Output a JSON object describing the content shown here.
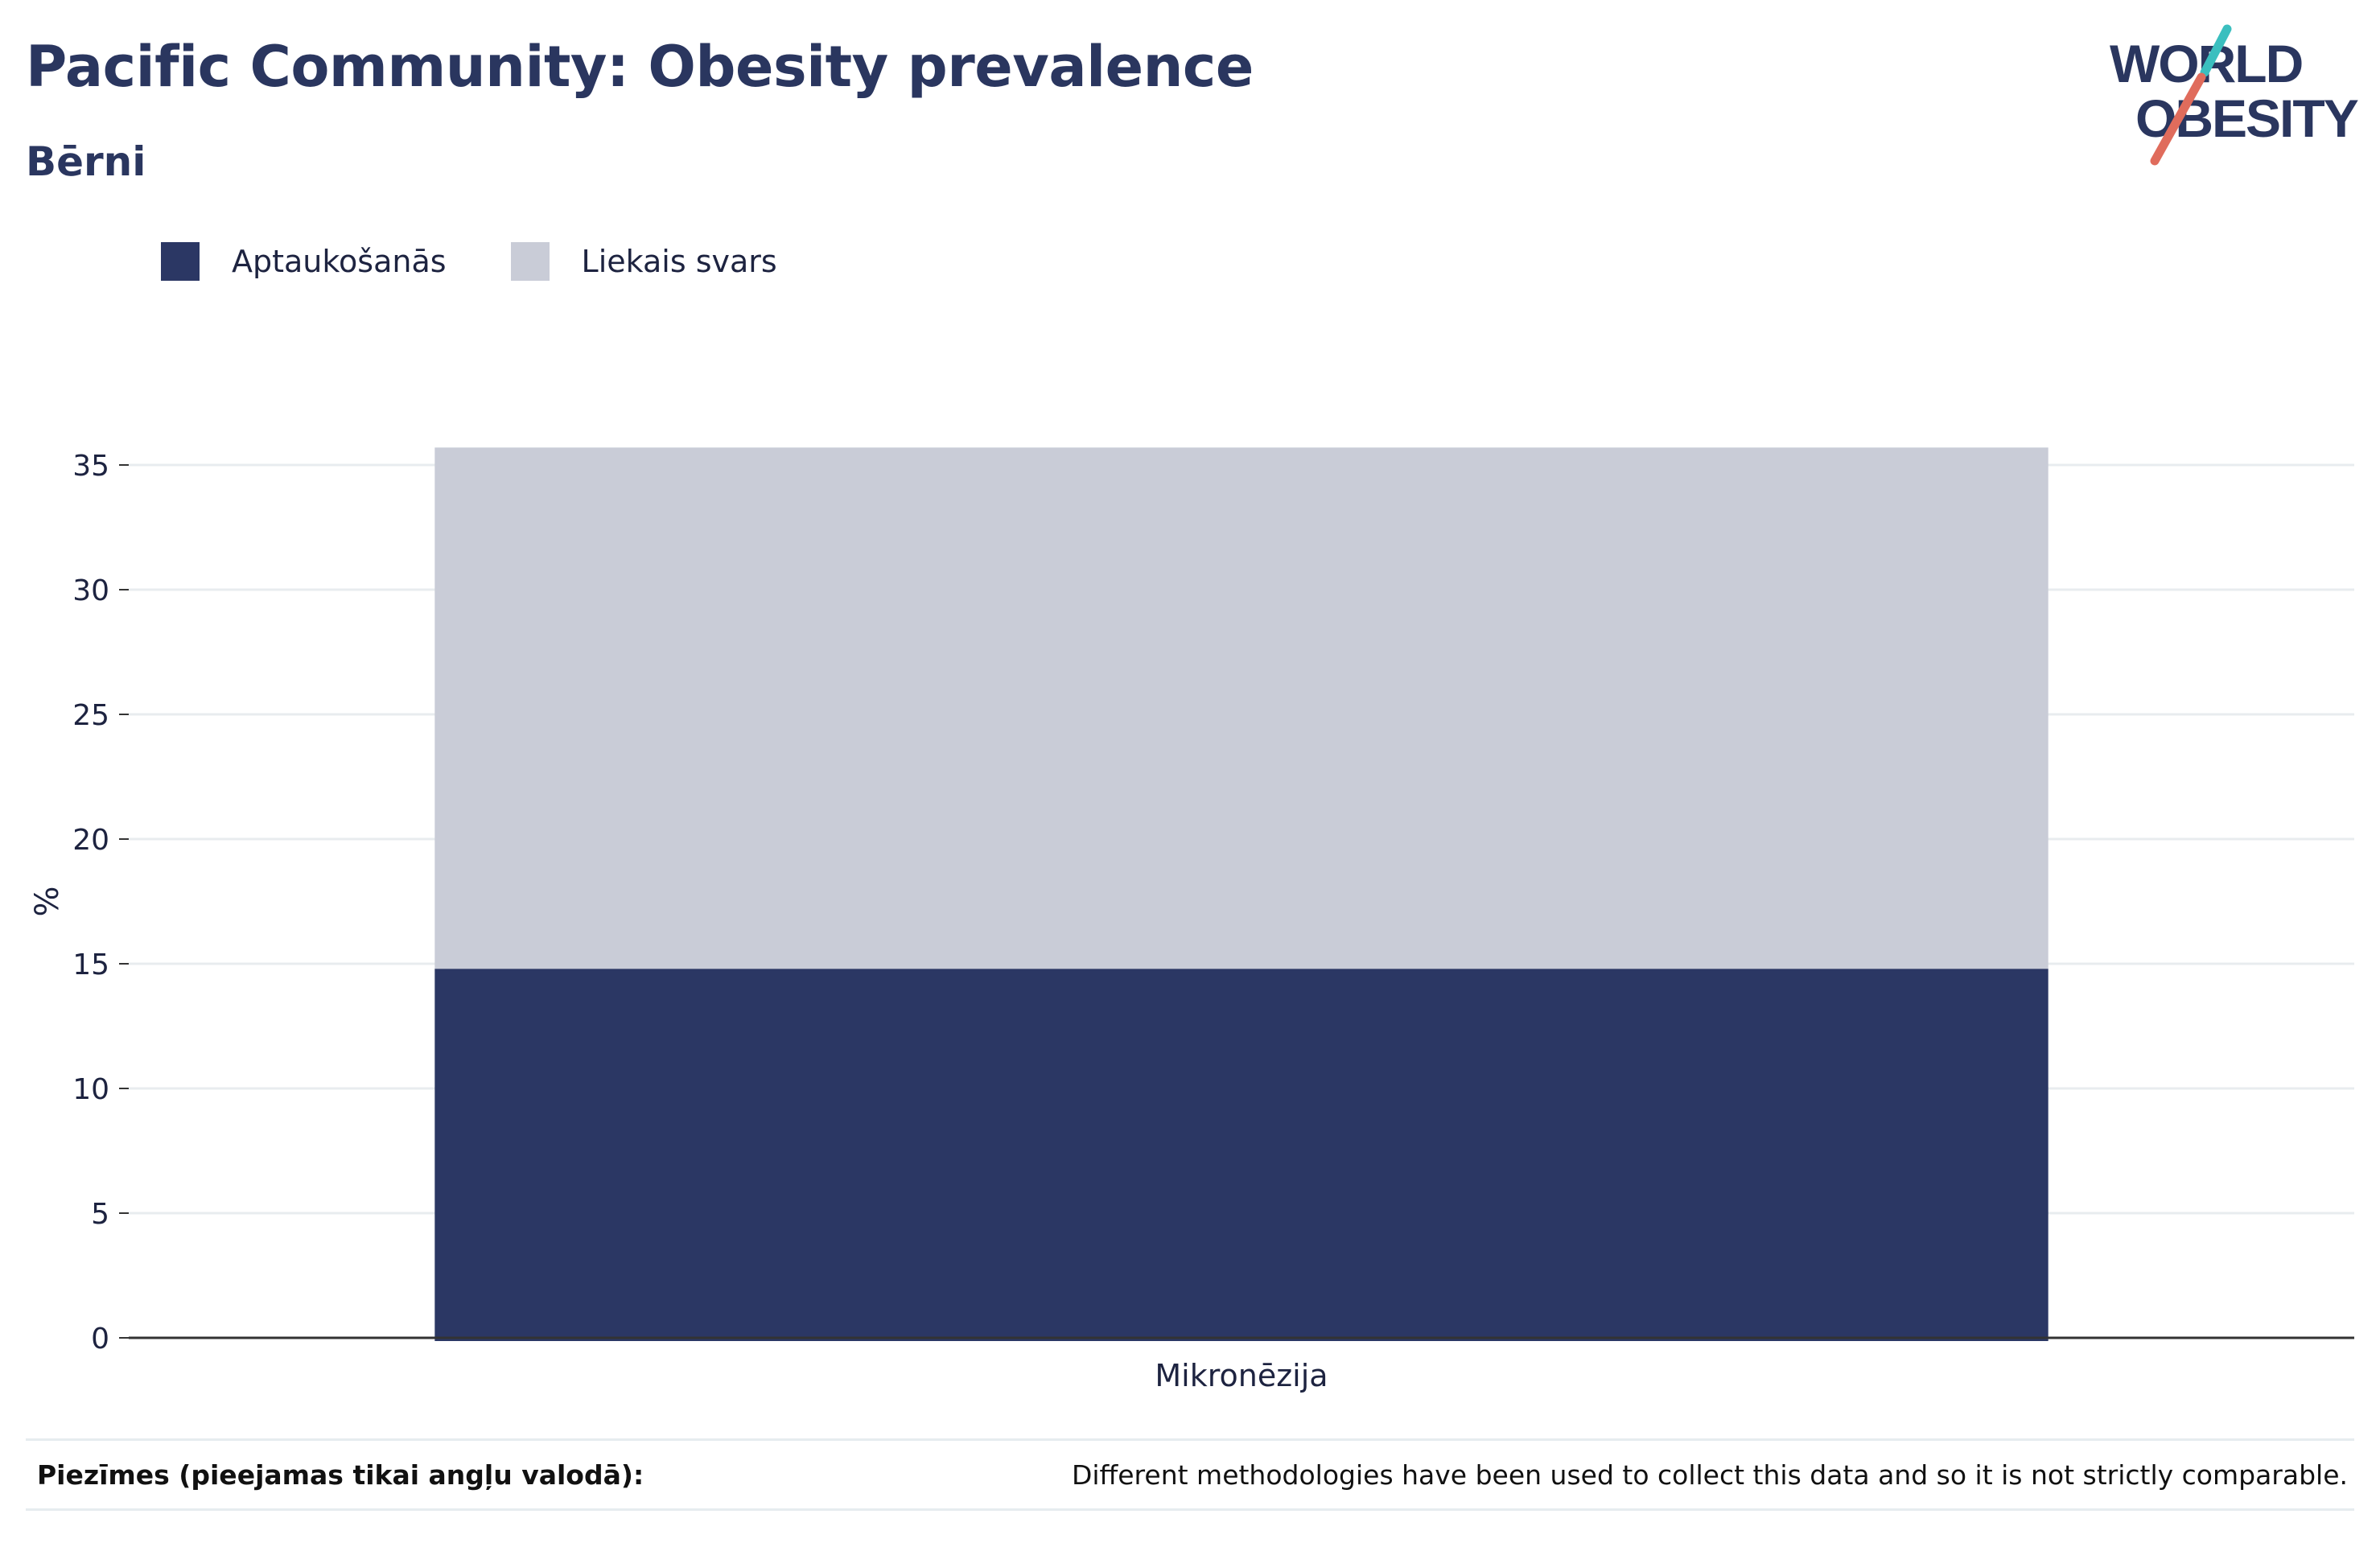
{
  "header": {
    "title": "Pacific Community: Obesity prevalence",
    "subtitle": "Bērni"
  },
  "logo": {
    "line1": "WORLD",
    "line2": "OBESITY"
  },
  "colors": {
    "obesity": "#2b3764",
    "overweight": "#c9ccd7",
    "text": "#2a365f",
    "grid": "#e8ecef",
    "axis": "#333333",
    "logo_teal": "#3bbfbf",
    "logo_coral": "#e06c5c"
  },
  "chart_data": {
    "type": "bar",
    "stacked": true,
    "categories": [
      "Mikronēzija"
    ],
    "series": [
      {
        "name": "Aptaukošanās",
        "values": [
          14.8
        ]
      },
      {
        "name": "Liekais svars",
        "values": [
          20.9
        ]
      }
    ],
    "ylabel": "%",
    "xlabel": "",
    "ylim": [
      0,
      35
    ],
    "yticks": [
      0,
      5,
      10,
      15,
      20,
      25,
      30,
      35
    ],
    "grid": true,
    "legend_position": "top-left"
  },
  "notes": {
    "label": "Piezīmes (pieejamas tikai angļu valodā):",
    "text": "Different methodologies have been used to collect this data and so it is not strictly comparable."
  }
}
